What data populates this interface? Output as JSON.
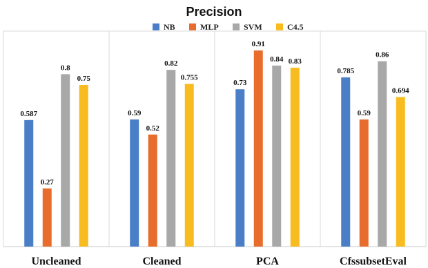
{
  "chart_data": {
    "type": "bar",
    "title": "Precision",
    "categories": [
      "Uncleaned",
      "Cleaned",
      "PCA",
      "CfssubsetEval"
    ],
    "series": [
      {
        "name": "NB",
        "values": [
          0.587,
          0.59,
          0.73,
          0.785
        ],
        "labels": [
          "0.587",
          "0.59",
          "0.73",
          "0.785"
        ],
        "color": "#4A7EC7"
      },
      {
        "name": "MLP",
        "values": [
          0.27,
          0.52,
          0.91,
          0.59
        ],
        "labels": [
          "0.27",
          "0.52",
          "0.91",
          "0.59"
        ],
        "color": "#E86C2C"
      },
      {
        "name": "SVM",
        "values": [
          0.8,
          0.82,
          0.84,
          0.86
        ],
        "labels": [
          "0.8",
          "0.82",
          "0.84",
          "0.86"
        ],
        "color": "#A8A8A8"
      },
      {
        "name": "C4.5",
        "values": [
          0.75,
          0.755,
          0.83,
          0.694
        ],
        "labels": [
          "0.75",
          "0.755",
          "0.83",
          "0.694"
        ],
        "color": "#F8BC20"
      }
    ],
    "xlabel": "",
    "ylabel": "",
    "ylim": [
      0,
      1
    ],
    "grid": false,
    "legend_position": "top"
  }
}
